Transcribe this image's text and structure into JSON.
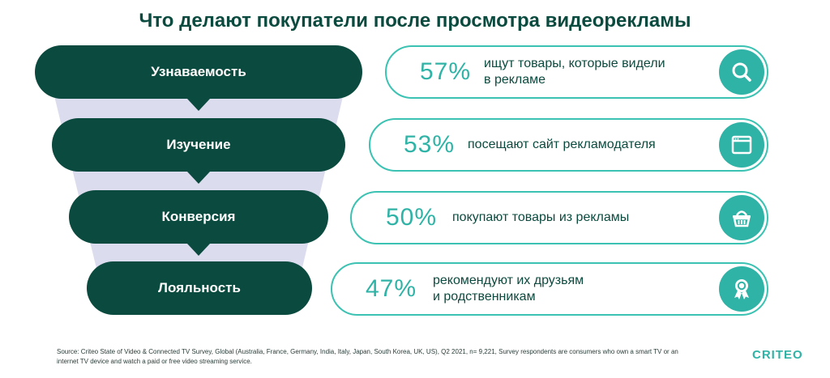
{
  "title": "Что делают покупатели после просмотра видеорекламы",
  "colors": {
    "dark_green": "#0b4a3e",
    "teal": "#2fb3a6",
    "funnel_fill": "#dcdcef"
  },
  "funnel": [
    {
      "stage": "Узнаваемость",
      "percent": "57%",
      "desc_lines": [
        "ищут товары, которые видели",
        "в рекламе"
      ],
      "icon": "search-icon"
    },
    {
      "stage": "Изучение",
      "percent": "53%",
      "desc_lines": [
        "посещают сайт рекламодателя"
      ],
      "icon": "browser-window-icon"
    },
    {
      "stage": "Конверсия",
      "percent": "50%",
      "desc_lines": [
        "покупают товары из рекламы"
      ],
      "icon": "shopping-basket-icon"
    },
    {
      "stage": "Лояльность",
      "percent": "47%",
      "desc_lines": [
        "рекомендуют их друзьям",
        "и родственникам"
      ],
      "icon": "award-ribbon-icon"
    }
  ],
  "source": {
    "line1": "Source: Criteo State of Video & Connected TV Survey, Global (Australia, France, Germany, India, Italy, Japan, South Korea, UK, US), Q2 2021, n= 9,221, Survey respondents are consumers who own a smart TV or an",
    "line2": "internet TV device and watch a paid or free video streaming service."
  },
  "logo": "CRITEO"
}
